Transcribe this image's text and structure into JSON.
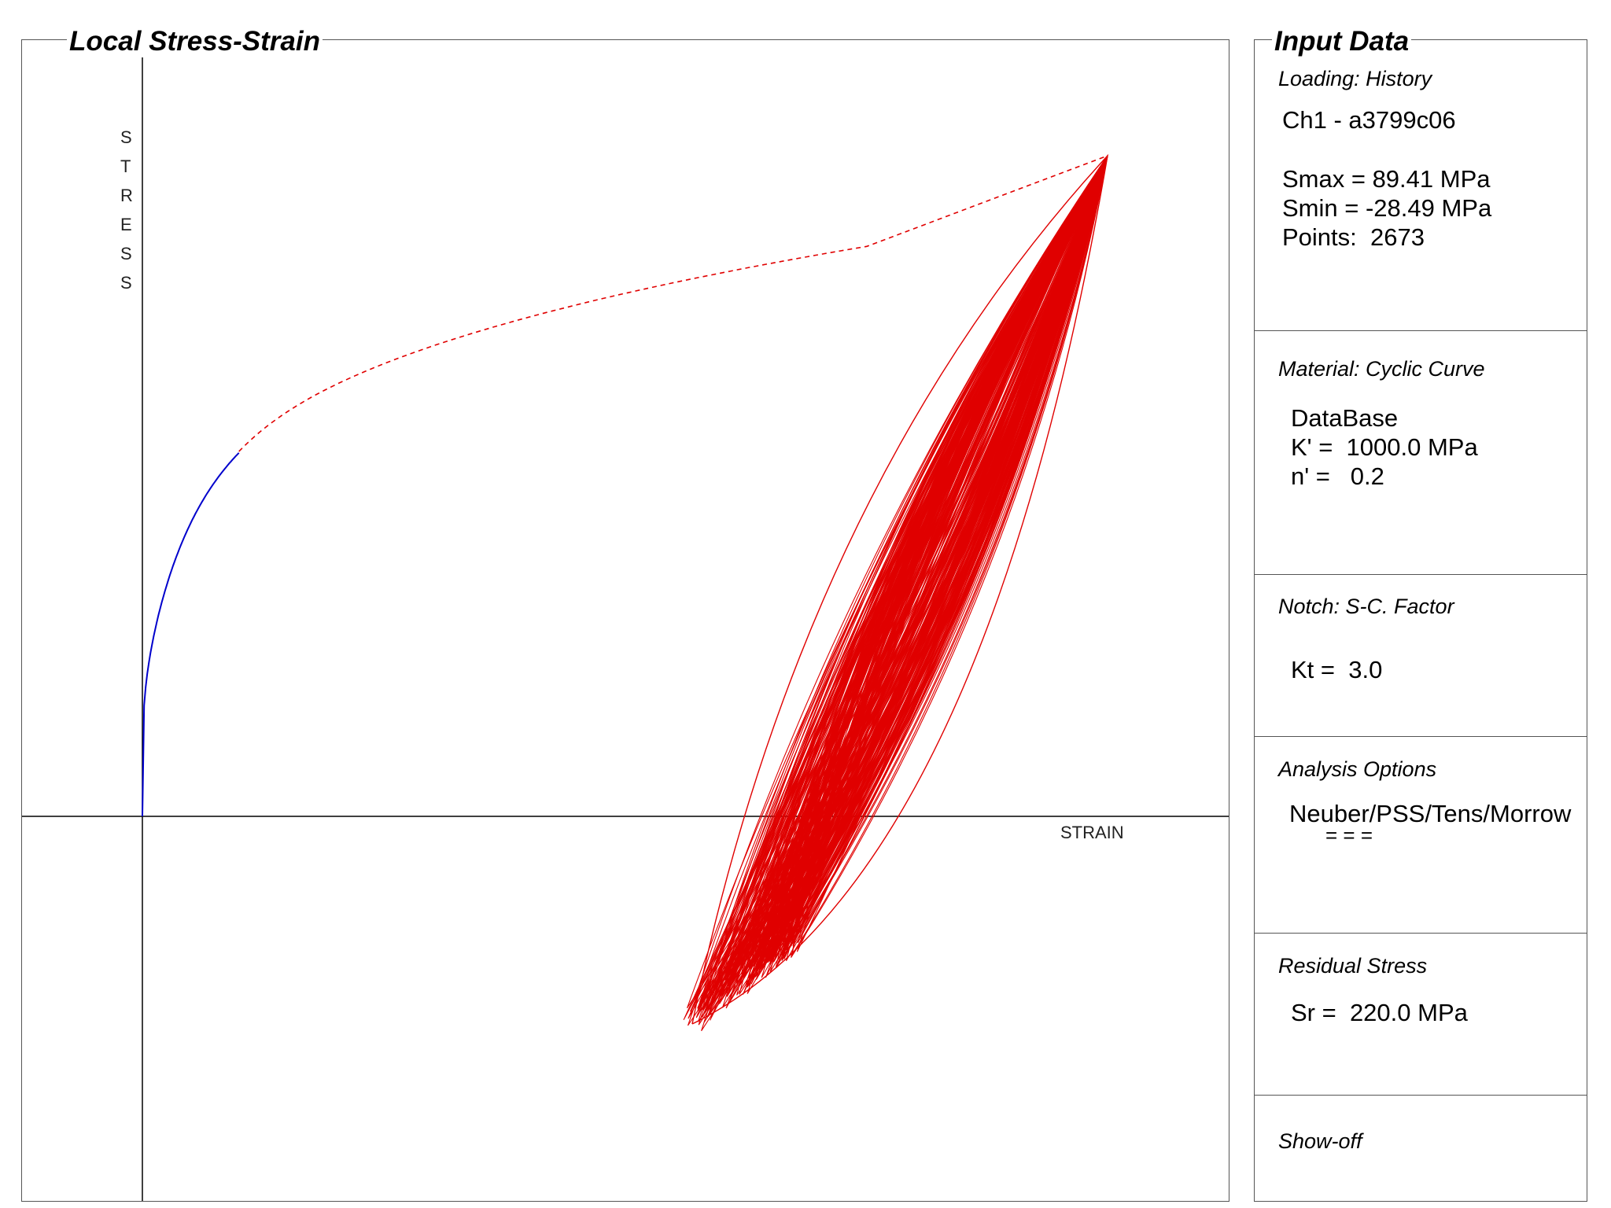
{
  "chart_title": "Local Stress-Strain",
  "input_panel": {
    "title": "Input Data",
    "loading": {
      "title": "Loading: History",
      "channel": "Ch1 - a3799c06",
      "smax": "Smax = 89.41 MPa",
      "smin": "Smin = -28.49 MPa",
      "points": "Points:  2673"
    },
    "material": {
      "title": "Material: Cyclic Curve",
      "source": "DataBase",
      "k_prime": "K' =  1000.0 MPa",
      "n_prime": "n' =   0.2"
    },
    "notch": {
      "title": "Notch: S-C. Factor",
      "kt": "Kt =  3.0"
    },
    "analysis": {
      "title": "Analysis Options",
      "methods": "Neuber/PSS/Tens/Morrow",
      "flags": "= = ="
    },
    "residual": {
      "title": "Residual Stress",
      "sr": "Sr =  220.0 MPa"
    },
    "showoff": {
      "title": "Show-off"
    }
  },
  "chart_data": {
    "type": "line",
    "xlabel": "STRAIN",
    "ylabel": "STRESS",
    "cyclic_curve": {
      "K_prime_MPa": 1000.0,
      "n_prime": 0.2
    },
    "series": [
      {
        "style": "solid",
        "color": "#0000cc",
        "segment": "monotonic-elastic-plastic"
      },
      {
        "style": "dashed",
        "color": "#e00000",
        "segment": "monotonic-continuation"
      },
      {
        "style": "solid",
        "color": "#e00000",
        "segment": "hysteresis-loops"
      }
    ],
    "colors": {
      "initial_curve": "#0000cc",
      "cycles": "#e00000",
      "axes": "#000000"
    }
  }
}
